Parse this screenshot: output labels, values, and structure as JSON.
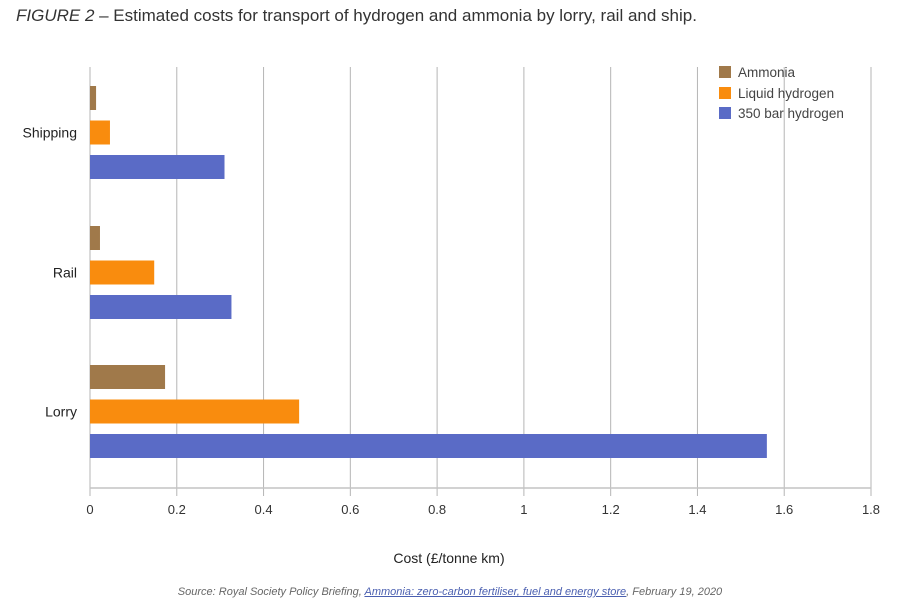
{
  "header": {
    "figure_label": "FIGURE 2",
    "title": " – Estimated costs for transport of hydrogen and ammonia by lorry, rail and ship."
  },
  "source": {
    "prefix": "Source: Royal Society Policy Briefing, ",
    "link_text": "Ammonia: zero-carbon fertiliser, fuel and energy store",
    "suffix": ", February 19, 2020"
  },
  "chart_data": {
    "type": "bar",
    "orientation": "horizontal",
    "title": "Estimated costs for transport of hydrogen and ammonia by lorry, rail and ship.",
    "xlabel": "Cost (£/tonne km)",
    "ylabel": "",
    "xlim": [
      0,
      1.8
    ],
    "xticks": [
      "0",
      "0.2",
      "0.4",
      "0.6",
      "0.8",
      "1",
      "1.2",
      "1.4",
      "1.6",
      "1.8"
    ],
    "tick_values": [
      0,
      0.2,
      0.4,
      0.6,
      0.8,
      1,
      1.2,
      1.4,
      1.6,
      1.8
    ],
    "grid": true,
    "legend_position": "top-right",
    "categories": [
      "Shipping",
      "Rail",
      "Lorry"
    ],
    "series": [
      {
        "name": "Ammonia",
        "color": "#a0794a",
        "values": [
          0.014,
          0.023,
          0.173
        ]
      },
      {
        "name": "Liquid hydrogen",
        "color": "#f98c0e",
        "values": [
          0.046,
          0.148,
          0.482
        ]
      },
      {
        "name": "350 bar hydrogen",
        "color": "#5a6bc6",
        "values": [
          0.31,
          0.326,
          1.56
        ]
      }
    ]
  }
}
